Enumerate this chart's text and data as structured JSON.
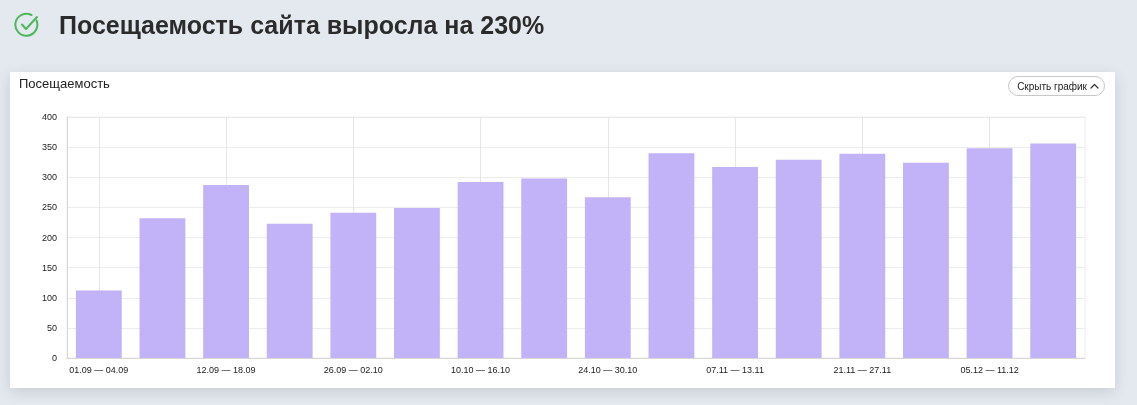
{
  "chart_data": {
    "type": "bar",
    "title": "Посещаемость сайта выросла на 230%",
    "subtitle": "Посещаемость",
    "annotations": [
      "Скрыть график"
    ],
    "categories": [
      "01.09 — 04.09",
      null,
      "12.09 — 18.09",
      null,
      "26.09 — 02.10",
      null,
      "10.10 — 16.10",
      null,
      "24.10 — 30.10",
      null,
      "07.11 — 13.11",
      null,
      "21.11 — 27.11",
      null,
      "05.12 — 11.12",
      null
    ],
    "values": [
      112,
      232,
      287,
      223,
      241,
      249,
      292,
      298,
      267,
      340,
      317,
      329,
      339,
      324,
      348,
      356
    ],
    "color": "#c2b2f8",
    "ylim": [
      0,
      400
    ],
    "yticks": [
      0,
      50,
      100,
      150,
      200,
      250,
      300,
      350,
      400
    ],
    "grid": true
  }
}
